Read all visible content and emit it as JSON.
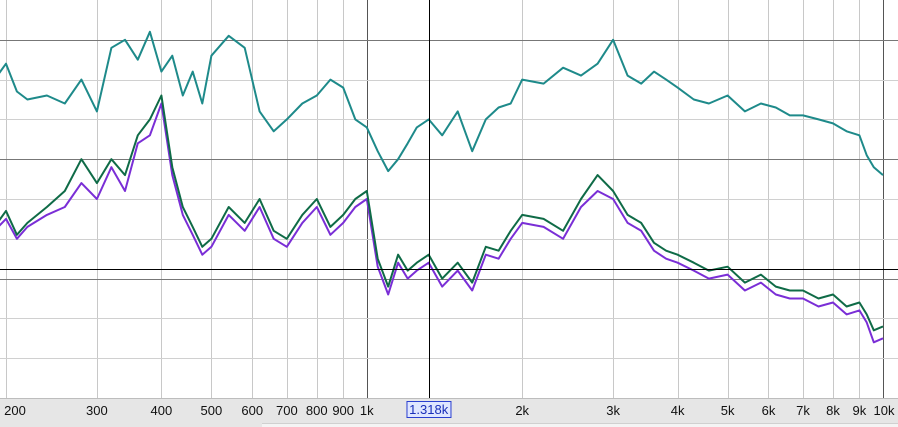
{
  "chart_data": {
    "type": "line",
    "x_scale": "log",
    "xlim": [
      180,
      10500
    ],
    "ylim": [
      0,
      100
    ],
    "x_ticks": [
      {
        "value": 200,
        "label": "200"
      },
      {
        "value": 300,
        "label": "300"
      },
      {
        "value": 400,
        "label": "400"
      },
      {
        "value": 500,
        "label": "500"
      },
      {
        "value": 600,
        "label": "600"
      },
      {
        "value": 700,
        "label": "700"
      },
      {
        "value": 800,
        "label": "800"
      },
      {
        "value": 900,
        "label": "900"
      },
      {
        "value": 1000,
        "label": "1k"
      },
      {
        "value": 2000,
        "label": "2k"
      },
      {
        "value": 3000,
        "label": "3k"
      },
      {
        "value": 4000,
        "label": "4k"
      },
      {
        "value": 5000,
        "label": "5k"
      },
      {
        "value": 6000,
        "label": "6k"
      },
      {
        "value": 7000,
        "label": "7k"
      },
      {
        "value": 8000,
        "label": "8k"
      },
      {
        "value": 9000,
        "label": "9k"
      },
      {
        "value": 10000,
        "label": "10k"
      }
    ],
    "cursor": {
      "value": 1318,
      "label": "1.318k"
    },
    "grid": true,
    "series": [
      {
        "color": "#1e8a8a",
        "x": [
          180,
          190,
          200,
          210,
          220,
          240,
          260,
          280,
          300,
          320,
          340,
          360,
          380,
          400,
          420,
          440,
          460,
          480,
          500,
          540,
          580,
          620,
          660,
          700,
          750,
          800,
          850,
          900,
          950,
          1000,
          1050,
          1100,
          1150,
          1200,
          1250,
          1318,
          1400,
          1500,
          1600,
          1700,
          1800,
          1900,
          2000,
          2200,
          2400,
          2600,
          2800,
          3000,
          3200,
          3400,
          3600,
          3800,
          4000,
          4300,
          4600,
          5000,
          5400,
          5800,
          6200,
          6600,
          7000,
          7500,
          8000,
          8500,
          9000,
          9300,
          9600,
          10000
        ],
        "y": [
          78,
          80,
          84,
          77,
          75,
          76,
          74,
          80,
          72,
          88,
          90,
          85,
          92,
          82,
          86,
          76,
          82,
          74,
          86,
          91,
          88,
          72,
          67,
          70,
          74,
          76,
          80,
          78,
          70,
          68,
          62,
          57,
          60,
          64,
          68,
          70,
          66,
          72,
          62,
          70,
          73,
          74,
          80,
          79,
          83,
          81,
          84,
          90,
          81,
          79,
          82,
          80,
          78,
          75,
          74,
          76,
          72,
          74,
          73,
          71,
          71,
          70,
          69,
          67,
          66,
          61,
          58,
          56
        ]
      },
      {
        "color": "#7a2ed6",
        "x": [
          180,
          190,
          200,
          210,
          220,
          240,
          260,
          280,
          300,
          320,
          340,
          360,
          380,
          400,
          420,
          440,
          460,
          480,
          500,
          540,
          580,
          620,
          660,
          700,
          750,
          800,
          850,
          900,
          950,
          1000,
          1050,
          1100,
          1150,
          1200,
          1250,
          1318,
          1400,
          1500,
          1600,
          1700,
          1800,
          1900,
          2000,
          2200,
          2400,
          2600,
          2800,
          3000,
          3200,
          3400,
          3600,
          3800,
          4000,
          4300,
          4600,
          5000,
          5400,
          5800,
          6200,
          6600,
          7000,
          7500,
          8000,
          8500,
          9000,
          9300,
          9600,
          10000
        ],
        "y": [
          38,
          42,
          45,
          40,
          43,
          46,
          48,
          54,
          50,
          58,
          52,
          64,
          66,
          74,
          56,
          46,
          41,
          36,
          38,
          46,
          42,
          48,
          40,
          38,
          44,
          48,
          41,
          44,
          48,
          50,
          33,
          26,
          34,
          30,
          32,
          34,
          28,
          32,
          27,
          36,
          35,
          40,
          44,
          43,
          40,
          48,
          52,
          50,
          44,
          42,
          37,
          35,
          34,
          32,
          30,
          31,
          27,
          29,
          26,
          25,
          25,
          23,
          24,
          21,
          22,
          19,
          14,
          15
        ]
      },
      {
        "color": "#0f6b47",
        "x": [
          180,
          190,
          200,
          210,
          220,
          240,
          260,
          280,
          300,
          320,
          340,
          360,
          380,
          400,
          420,
          440,
          460,
          480,
          500,
          540,
          580,
          620,
          660,
          700,
          750,
          800,
          850,
          900,
          950,
          1000,
          1050,
          1100,
          1150,
          1200,
          1250,
          1318,
          1400,
          1500,
          1600,
          1700,
          1800,
          1900,
          2000,
          2200,
          2400,
          2600,
          2800,
          3000,
          3200,
          3400,
          3600,
          3800,
          4000,
          4300,
          4600,
          5000,
          5400,
          5800,
          6200,
          6600,
          7000,
          7500,
          8000,
          8500,
          9000,
          9300,
          9600,
          10000
        ],
        "y": [
          40,
          43,
          47,
          41,
          44,
          48,
          52,
          60,
          54,
          60,
          56,
          66,
          70,
          76,
          58,
          48,
          43,
          38,
          40,
          48,
          44,
          50,
          42,
          40,
          46,
          50,
          43,
          46,
          50,
          52,
          35,
          28,
          36,
          32,
          34,
          36,
          30,
          34,
          29,
          38,
          37,
          42,
          46,
          45,
          42,
          50,
          56,
          52,
          46,
          44,
          39,
          37,
          36,
          34,
          32,
          33,
          29,
          31,
          28,
          27,
          27,
          25,
          26,
          23,
          24,
          21,
          17,
          18
        ]
      }
    ]
  }
}
